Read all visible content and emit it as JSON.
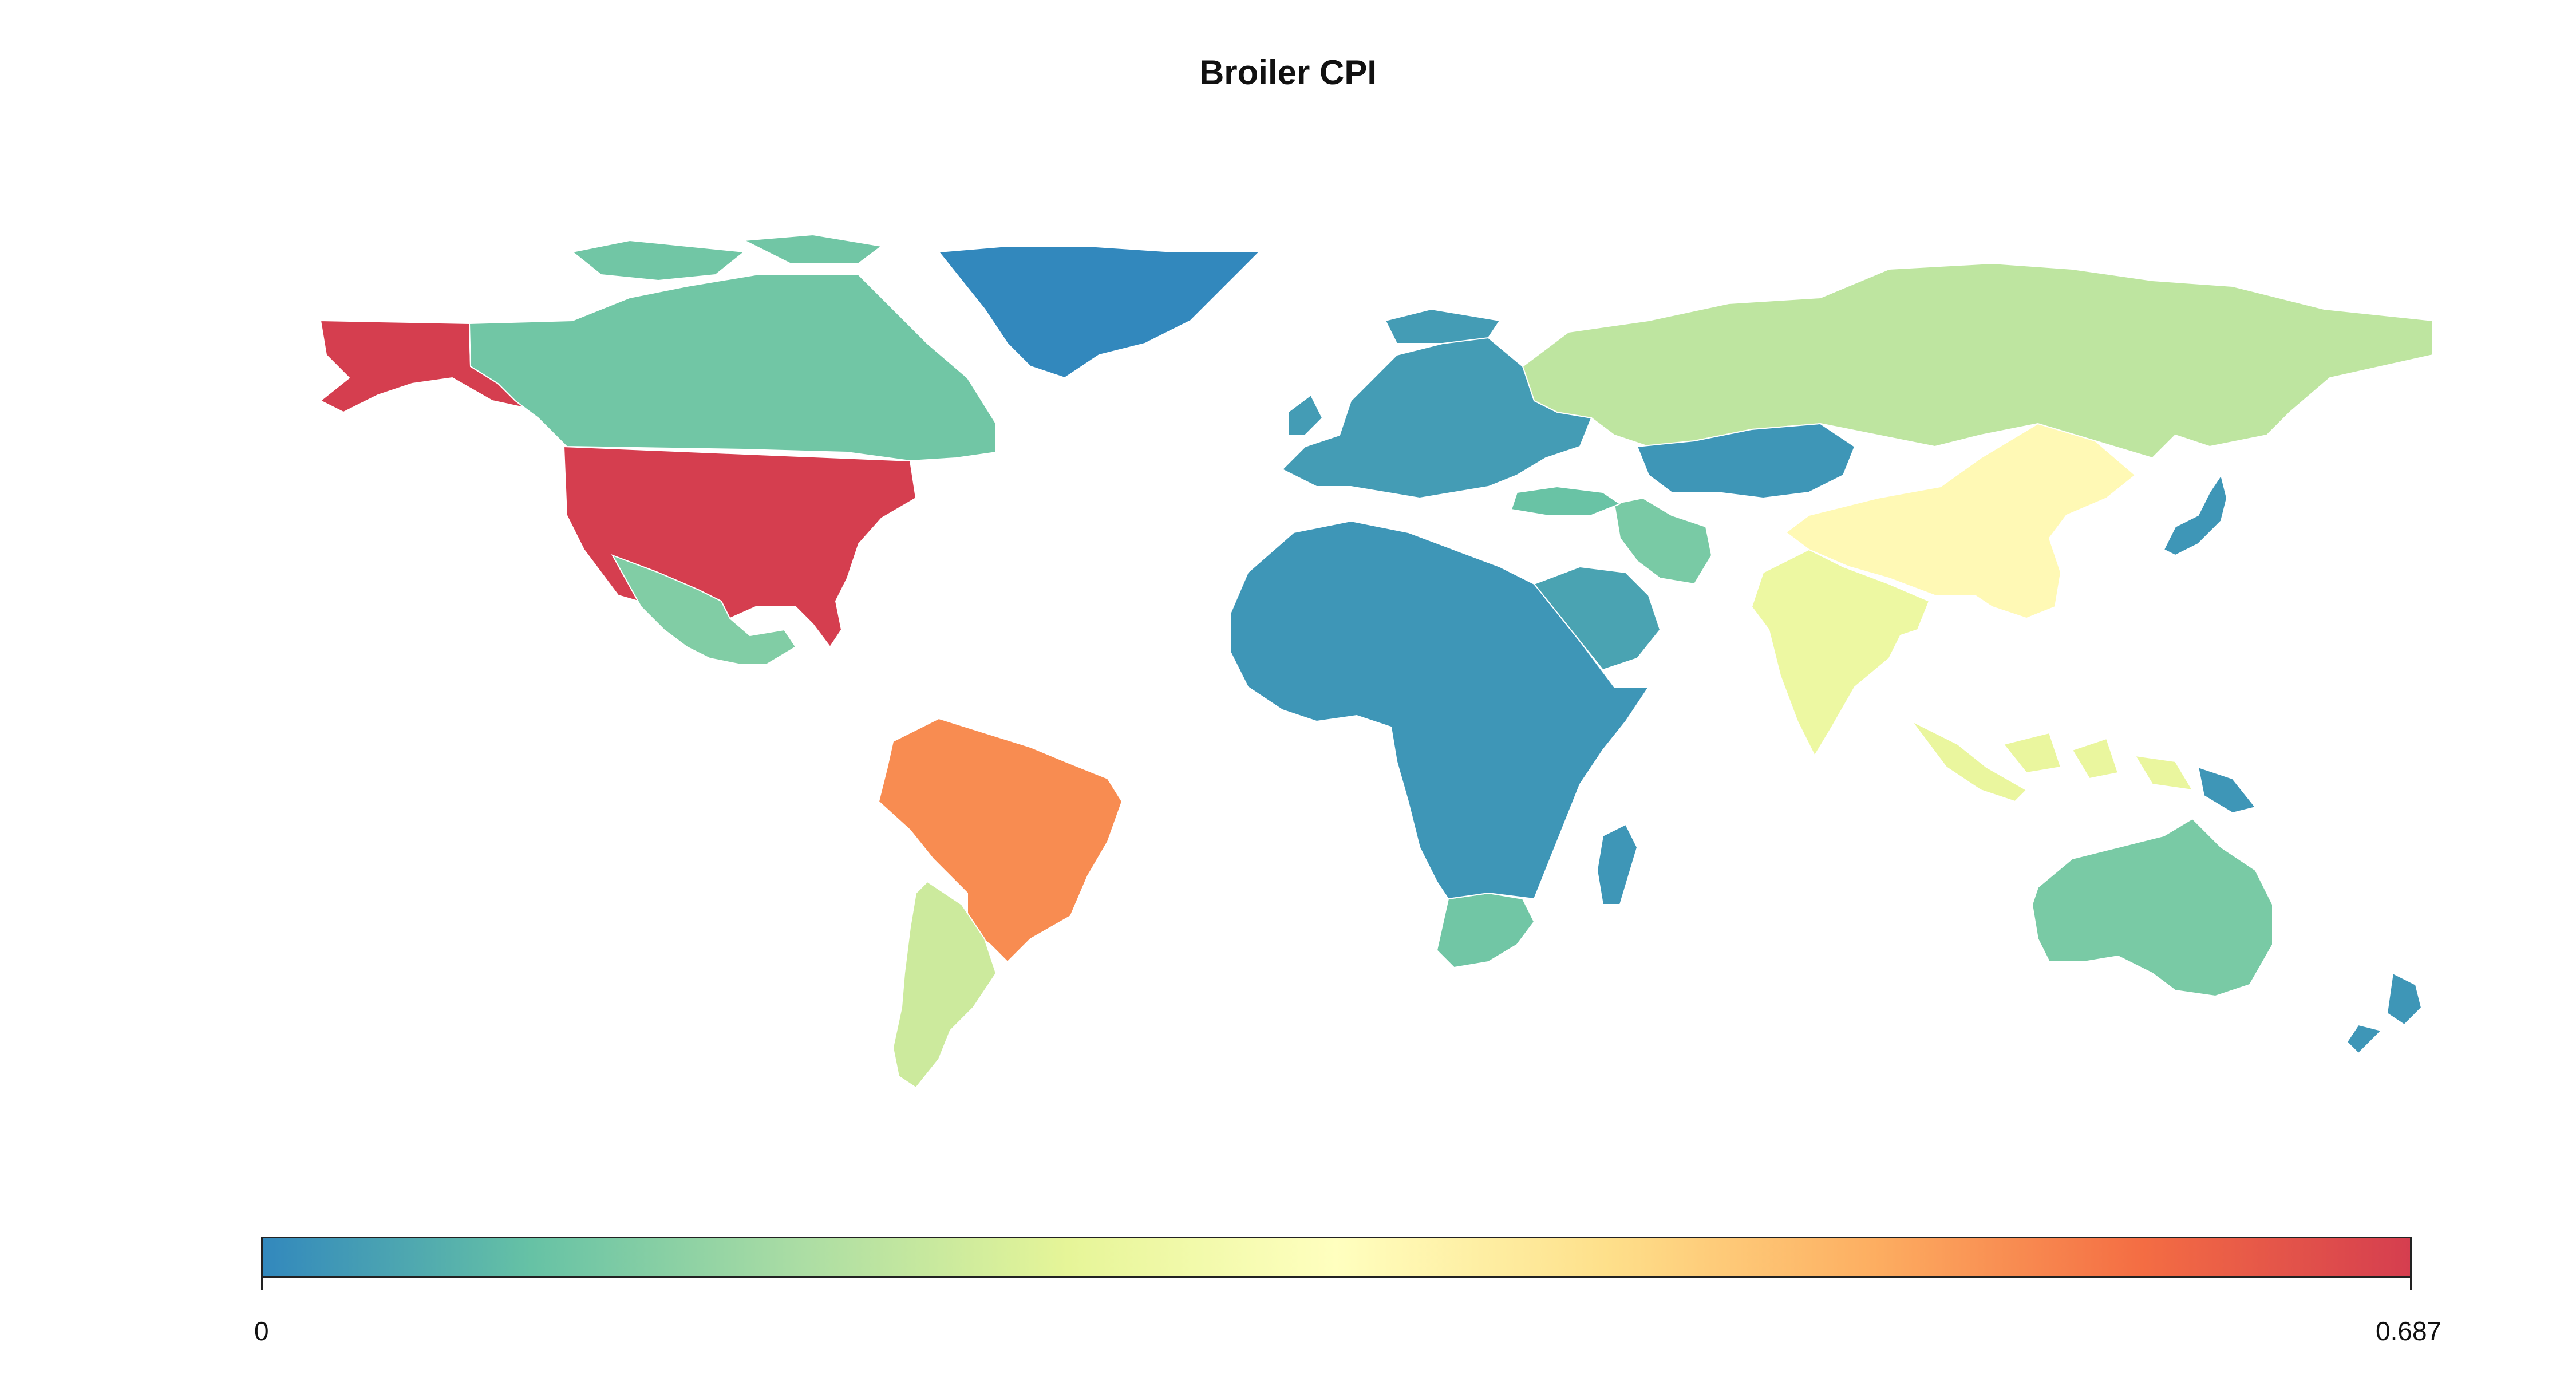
{
  "title": "Broiler CPI",
  "legend": {
    "min_label": "0",
    "max_label": "0.687",
    "min": 0,
    "max": 0.687,
    "palette": [
      "#3288bd",
      "#66c2a5",
      "#abdda4",
      "#e6f598",
      "#ffffbf",
      "#fee08b",
      "#fdae61",
      "#f46d43",
      "#d53e4f"
    ]
  },
  "map_data": {
    "type": "choropleth",
    "metric": "Broiler CPI",
    "regions": [
      {
        "name": "United States",
        "value": 0.687
      },
      {
        "name": "Alaska",
        "value": 0.687
      },
      {
        "name": "Brazil",
        "value": 0.56
      },
      {
        "name": "China",
        "value": 0.36
      },
      {
        "name": "India",
        "value": 0.28
      },
      {
        "name": "Indonesia",
        "value": 0.27
      },
      {
        "name": "Argentina",
        "value": 0.22
      },
      {
        "name": "Russia",
        "value": 0.2
      },
      {
        "name": "Mexico",
        "value": 0.12
      },
      {
        "name": "Australia",
        "value": 0.11
      },
      {
        "name": "Canada",
        "value": 0.1
      },
      {
        "name": "South Africa",
        "value": 0.1
      },
      {
        "name": "Iran",
        "value": 0.11
      },
      {
        "name": "Turkey",
        "value": 0.09
      },
      {
        "name": "Greenland",
        "value": 0.0
      },
      {
        "name": "Africa (other)",
        "value": 0.02
      },
      {
        "name": "Europe (other)",
        "value": 0.03
      },
      {
        "name": "Japan",
        "value": 0.02
      },
      {
        "name": "Kazakhstan",
        "value": 0.02
      },
      {
        "name": "Saudi Arabia",
        "value": 0.04
      },
      {
        "name": "New Zealand",
        "value": 0.02
      },
      {
        "name": "Papua New Guinea",
        "value": 0.02
      }
    ]
  }
}
